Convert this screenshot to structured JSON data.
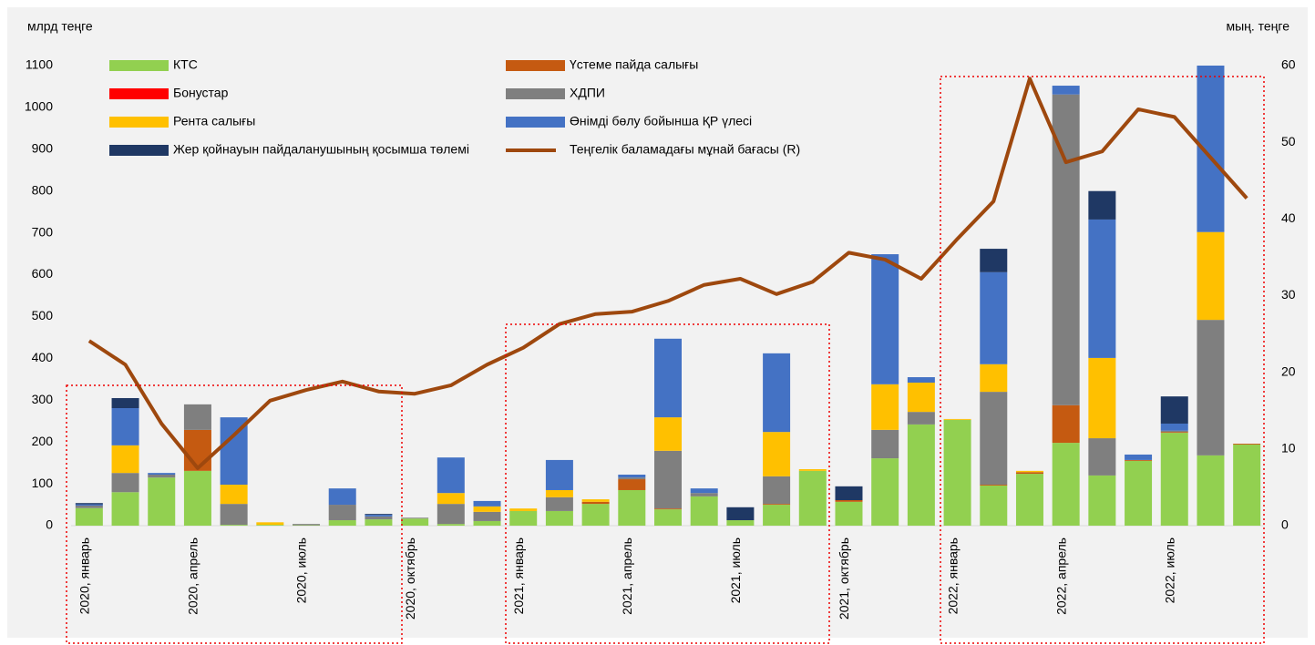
{
  "chart_data": {
    "type": "bar",
    "stacked": true,
    "y_label": "млрд теңге",
    "y2_label": "мың. теңге",
    "categories": [
      "2020, январь",
      null,
      null,
      "2020, апрель",
      null,
      null,
      "2020, июль",
      null,
      null,
      "2020, октябрь",
      null,
      null,
      "2021, январь",
      null,
      null,
      "2021, апрель",
      null,
      null,
      "2021, июль",
      null,
      null,
      "2021, октябрь",
      null,
      null,
      "2022, январь",
      null,
      null,
      "2022, апрель",
      null,
      null,
      "2022, июль",
      null,
      null
    ],
    "ylim": [
      0,
      1100
    ],
    "yticks": [
      0,
      100,
      200,
      300,
      400,
      500,
      600,
      700,
      800,
      900,
      1000,
      1100
    ],
    "y2lim": [
      0,
      60
    ],
    "y2ticks": [
      0,
      10,
      20,
      30,
      40,
      50,
      60
    ],
    "series": [
      {
        "name": "КТС",
        "color": "#92d050",
        "values": [
          42,
          80,
          115,
          131,
          2,
          2,
          1,
          13,
          15,
          17,
          4,
          11,
          35,
          35,
          52,
          85,
          39,
          70,
          13,
          50,
          131,
          57,
          161,
          242,
          253,
          96,
          124,
          198,
          120,
          155,
          222,
          168,
          194
        ]
      },
      {
        "name": "Үстеме пайда салығы",
        "color": "#c55a11",
        "values": [
          0,
          0,
          0,
          98,
          0,
          0,
          0,
          0,
          0,
          0,
          0,
          0,
          0,
          0,
          5,
          26,
          2,
          0,
          0,
          2,
          0,
          4,
          0,
          0,
          0,
          2,
          4,
          90,
          0,
          2,
          2,
          0,
          2
        ]
      },
      {
        "name": "Бонустар",
        "color": "#ff0000",
        "values": [
          0,
          0,
          0,
          0,
          0,
          0,
          0,
          0,
          0,
          0,
          0,
          0,
          0,
          0,
          0,
          0,
          0,
          0,
          0,
          0,
          0,
          0,
          0,
          0,
          0,
          0,
          0,
          0,
          0,
          0,
          0,
          0,
          0
        ]
      },
      {
        "name": "ХДПИ",
        "color": "#7f7f7f",
        "values": [
          6,
          46,
          7,
          61,
          50,
          0,
          3,
          37,
          7,
          2,
          48,
          22,
          0,
          33,
          0,
          4,
          138,
          8,
          0,
          66,
          0,
          0,
          68,
          30,
          0,
          222,
          0,
          743,
          89,
          0,
          3,
          324,
          0
        ]
      },
      {
        "name": "Рента салығы",
        "color": "#ffc000",
        "values": [
          0,
          66,
          0,
          0,
          46,
          6,
          0,
          0,
          0,
          0,
          26,
          13,
          6,
          17,
          6,
          0,
          80,
          0,
          0,
          106,
          4,
          0,
          109,
          70,
          2,
          66,
          3,
          0,
          192,
          0,
          0,
          210,
          0
        ]
      },
      {
        "name": "Өнімді бөлу бойынша ҚР үлесі",
        "color": "#4472c4",
        "values": [
          3,
          89,
          4,
          0,
          161,
          0,
          0,
          39,
          4,
          0,
          85,
          13,
          0,
          72,
          0,
          7,
          188,
          11,
          0,
          188,
          0,
          0,
          311,
          13,
          0,
          220,
          0,
          21,
          331,
          13,
          17,
          398,
          0
        ]
      },
      {
        "name": "Жер қойнауын пайдаланушының қосымша төлемі",
        "color": "#1f3864",
        "values": [
          3,
          24,
          0,
          0,
          0,
          0,
          0,
          0,
          2,
          0,
          0,
          0,
          0,
          0,
          0,
          0,
          0,
          0,
          31,
          0,
          0,
          33,
          0,
          0,
          0,
          56,
          0,
          0,
          68,
          0,
          65,
          0,
          0
        ]
      },
      {
        "name": "Теңгелік баламадағы мұнай бағасы (R)",
        "color": "#9e480e",
        "type": "line",
        "axis": "y2",
        "values": [
          24.1,
          21.0,
          13.3,
          7.5,
          11.8,
          16.3,
          17.7,
          18.8,
          17.5,
          17.2,
          18.3,
          21.0,
          23.2,
          26.3,
          27.6,
          27.9,
          29.3,
          31.4,
          32.2,
          30.2,
          31.8,
          35.6,
          34.7,
          32.2,
          37.4,
          42.3,
          58.3,
          47.4,
          48.8,
          54.3,
          53.3,
          48.0,
          42.7
        ]
      }
    ]
  }
}
